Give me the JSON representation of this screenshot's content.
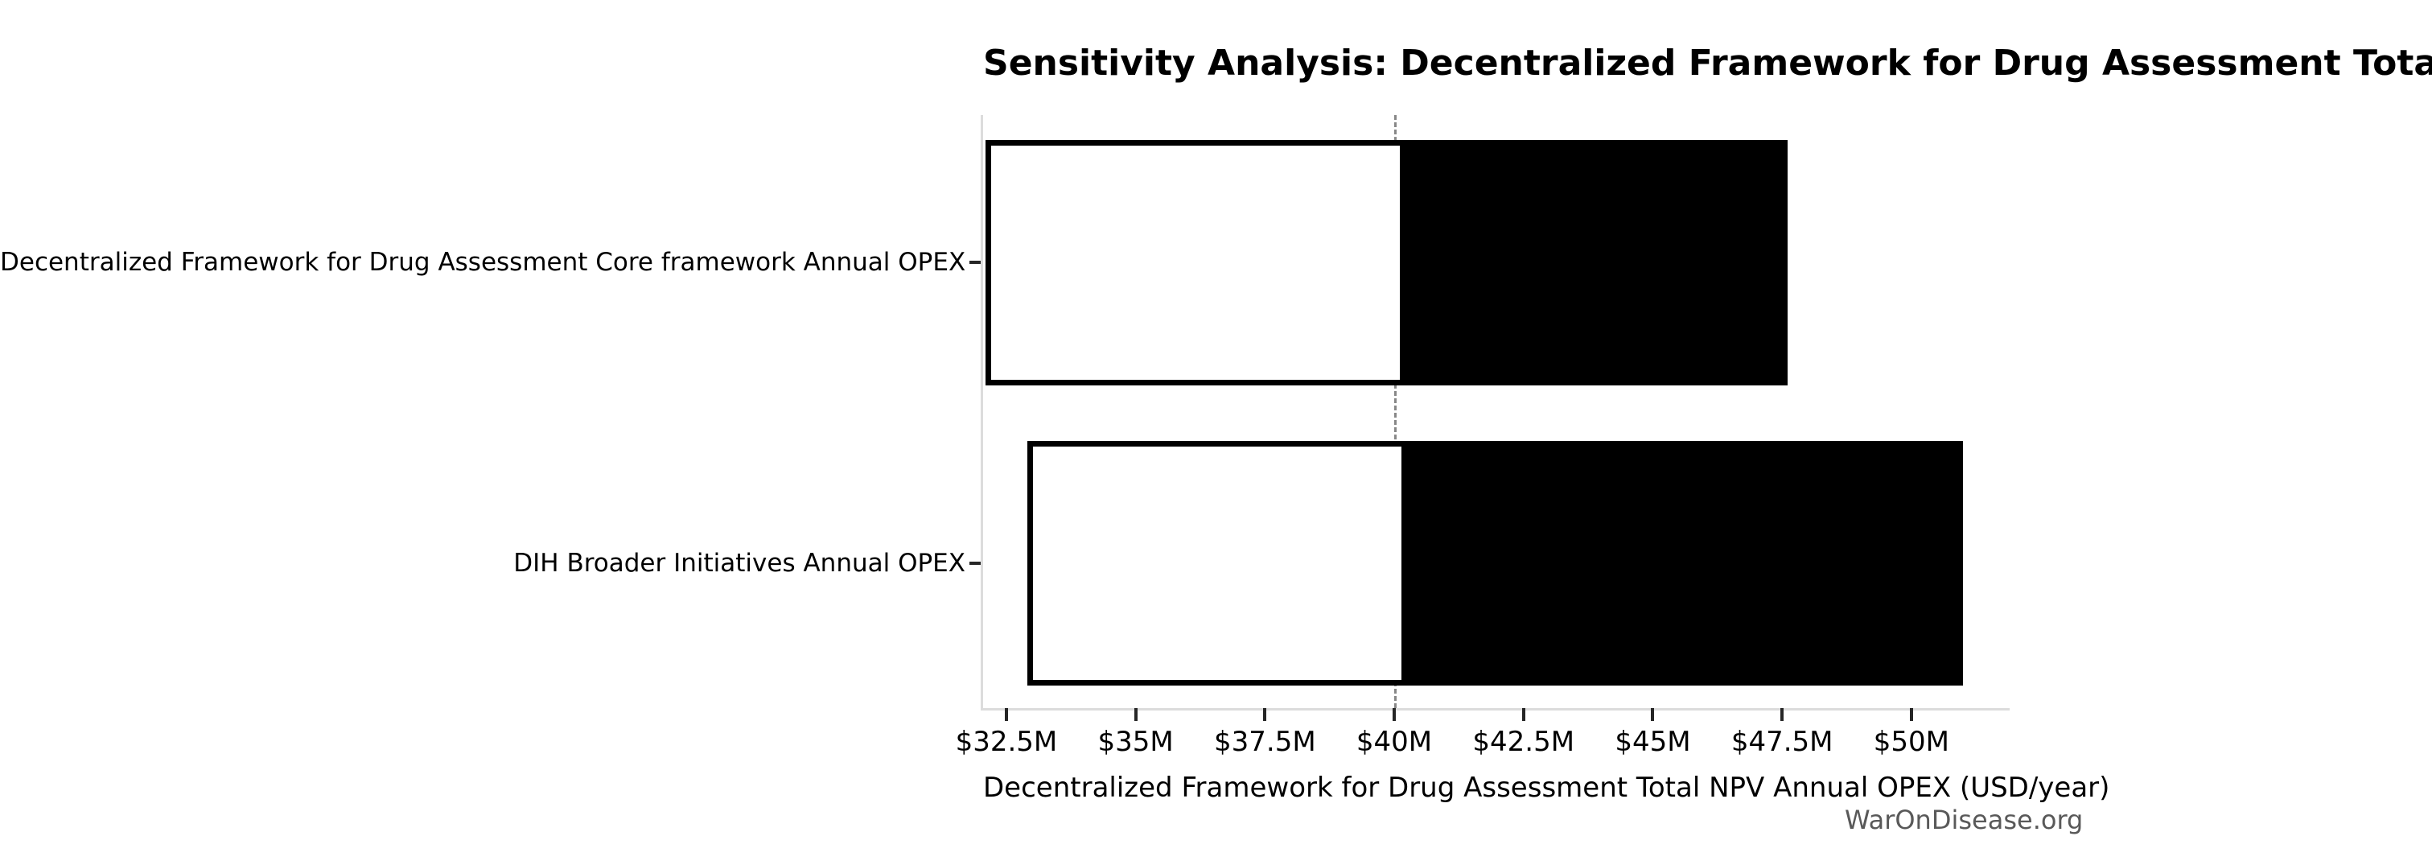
{
  "chart_data": {
    "type": "bar",
    "variant": "tornado-sensitivity",
    "orientation": "horizontal",
    "title": "Sensitivity Analysis: Decentralized Framework for Drug Assessment Total NPV Annual OPEX",
    "xlabel": "Decentralized Framework for Drug Assessment Total NPV Annual OPEX (USD/year)",
    "ylabel": "",
    "grid": false,
    "legend": false,
    "xlim": [
      32.05,
      51.9
    ],
    "baseline": {
      "value": 40,
      "label": "$40M"
    },
    "categories": [
      "Decentralized Framework for Drug Assessment Core framework Annual OPEX",
      "DIH Broader Initiatives Annual OPEX"
    ],
    "bars": [
      {
        "label": "Decentralized Framework for Drug Assessment Core framework Annual OPEX",
        "low": 32.1,
        "high": 47.6
      },
      {
        "label": "DIH Broader Initiatives Annual OPEX",
        "low": 32.9,
        "high": 51.0
      }
    ],
    "x_ticks": [
      {
        "value": 32.5,
        "label": "$32.5M"
      },
      {
        "value": 35,
        "label": "$35M"
      },
      {
        "value": 37.5,
        "label": "$37.5M"
      },
      {
        "value": 40,
        "label": "$40M"
      },
      {
        "value": 42.5,
        "label": "$42.5M"
      },
      {
        "value": 45,
        "label": "$45M"
      },
      {
        "value": 47.5,
        "label": "$47.5M"
      },
      {
        "value": 50,
        "label": "$50M"
      }
    ],
    "colors": {
      "bar_low_fill": "#ffffff",
      "bar_high_fill": "#000000",
      "bar_border": "#000000",
      "baseline_line": "#888888",
      "spine": "#dcdcdc",
      "tick": "#262626",
      "text": "#000000",
      "watermark": "#595959"
    }
  },
  "footer": {
    "watermark": "WarOnDisease.org"
  }
}
